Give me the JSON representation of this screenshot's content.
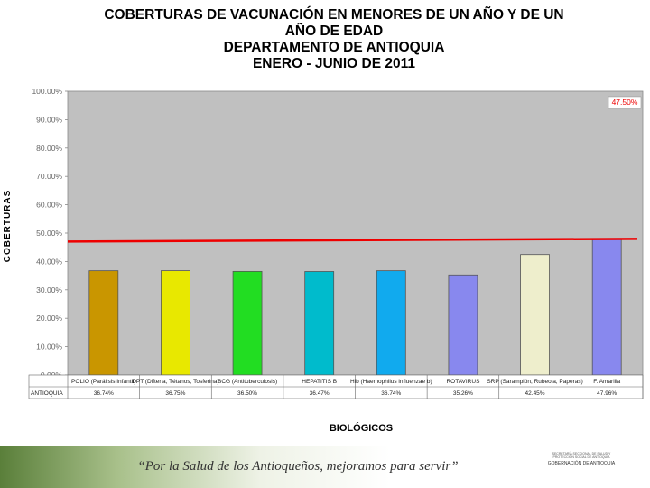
{
  "title": {
    "line1": "COBERTURAS DE VACUNACIÓN EN MENORES DE UN AÑO Y DE UN",
    "line2": "AÑO DE EDAD",
    "line3": "DEPARTAMENTO DE ANTIOQUIA",
    "line4": "ENERO - JUNIO DE 2011"
  },
  "chart_data": {
    "type": "bar",
    "ylabel": "COBERTURAS",
    "xlabel": "BIOLÓGICOS",
    "ylim": [
      0,
      100
    ],
    "y_ticks": [
      "0.00%",
      "10.00%",
      "20.00%",
      "30.00%",
      "40.00%",
      "50.00%",
      "60.00%",
      "70.00%",
      "80.00%",
      "90.00%",
      "100.00%"
    ],
    "categories": [
      "POLIO (Parálisis Infantil)",
      "DPT (Difteria, Tétanos, Tosferina)",
      "BCG (Antituberculosis)",
      "HEPATITIS B",
      "Hib (Haemophilus influenzae b)",
      "ROTAVIRUS",
      "SRP (Sarampión, Rubeola, Paperas)",
      "F. Amarilla"
    ],
    "series": [
      {
        "name": "ANTIOQUIA",
        "values": [
          36.74,
          36.75,
          36.5,
          36.47,
          36.74,
          35.26,
          42.45,
          47.96
        ],
        "labels": [
          "36.74%",
          "36.75%",
          "36.50%",
          "36.47%",
          "36.74%",
          "35.26%",
          "42.45%",
          "47.96%"
        ],
        "colors": [
          "#c99600",
          "#e8e800",
          "#22dd22",
          "#00bbcc",
          "#11aaee",
          "#8888ee",
          "#eeeecc",
          "#8888ee"
        ]
      }
    ],
    "reference_line": {
      "value": 47.5,
      "label": "47.50%",
      "color": "#ee0000"
    },
    "plot_background": "#c0c0c0",
    "grid": false,
    "legend": "none"
  },
  "footer": {
    "slogan": "“Por la Salud de los Antioqueños, mejoramos para servir”",
    "seal_small_text": "SECRETARÍA SECCIONAL DE SALUD Y PROTECCIÓN SOCIAL DE ANTIOQUIA",
    "government": "GOBERNACIÓN DE ANTIOQUIA"
  }
}
